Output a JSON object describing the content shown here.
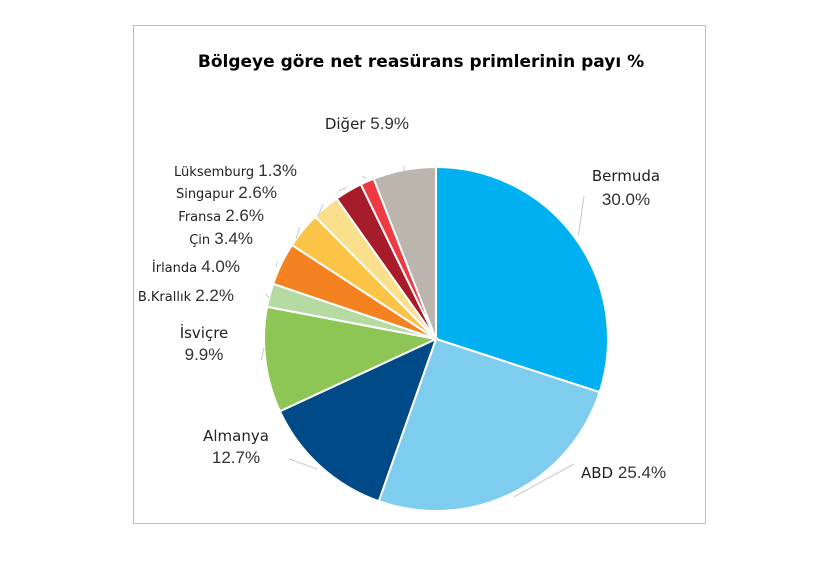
{
  "chart_data": {
    "type": "pie",
    "title": "Bölgeye göre net reasürans primlerinin payı %",
    "slices": [
      {
        "label": "Bermuda",
        "value": 30.0,
        "display": "30.0%",
        "color": "#00b0f0"
      },
      {
        "label": "ABD",
        "value": 25.4,
        "display": "25.4%",
        "color": "#7fcdee"
      },
      {
        "label": "Almanya",
        "value": 12.7,
        "display": "12.7%",
        "color": "#004b87"
      },
      {
        "label": "İsviçre",
        "value": 9.9,
        "display": "9.9%",
        "color": "#8dc655"
      },
      {
        "label": "B.Krallık",
        "value": 2.2,
        "display": "2.2%",
        "color": "#b5dba3"
      },
      {
        "label": "İrlanda",
        "value": 4.0,
        "display": "4.0%",
        "color": "#f58220"
      },
      {
        "label": "Çin",
        "value": 3.4,
        "display": "3.4%",
        "color": "#fcc447"
      },
      {
        "label": "Fransa",
        "value": 2.6,
        "display": "2.6%",
        "color": "#fadf8c"
      },
      {
        "label": "Singapur",
        "value": 2.6,
        "display": "2.6%",
        "color": "#a61c2a"
      },
      {
        "label": "Lüksemburg",
        "value": 1.3,
        "display": "1.3%",
        "color": "#ee3a43"
      },
      {
        "label": "Diğer",
        "value": 5.9,
        "display": "5.9%",
        "color": "#bcb5ae"
      }
    ]
  }
}
